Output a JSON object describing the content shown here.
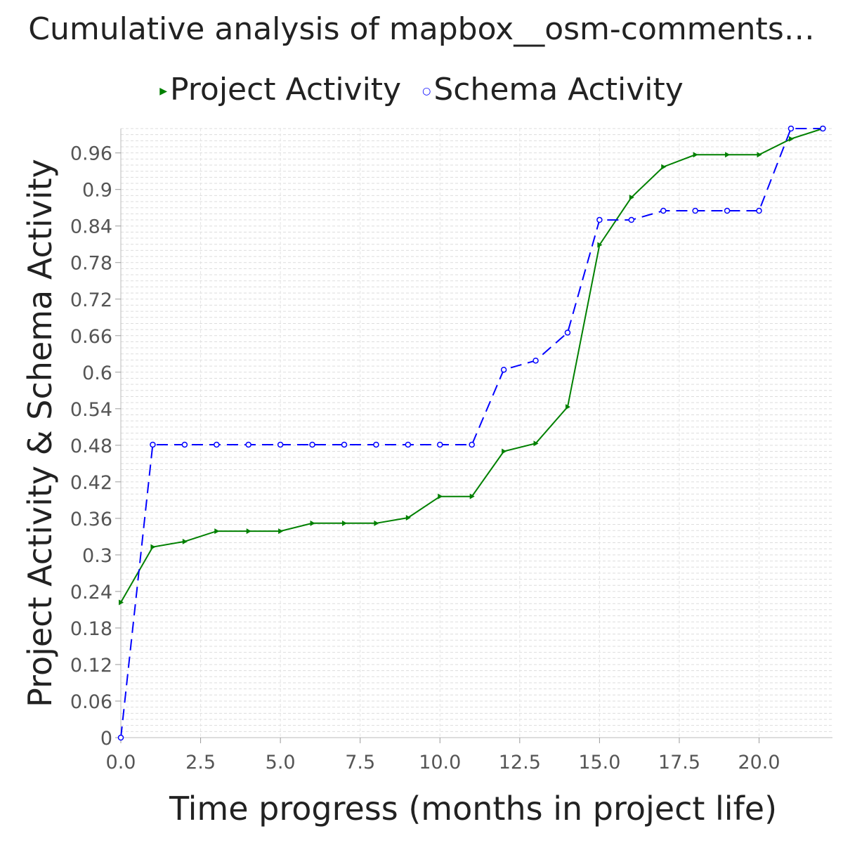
{
  "chart_data": {
    "type": "line",
    "title": "Cumulative analysis of mapbox__osm-comments…",
    "xlabel": "Time progress (months in project life)",
    "ylabel": "Project Activity & Schema Activity",
    "xlim": [
      0,
      22.3
    ],
    "ylim": [
      0,
      1.0
    ],
    "xticks": [
      "0.0",
      "2.5",
      "5.0",
      "7.5",
      "10.0",
      "12.5",
      "15.0",
      "17.5",
      "20.0"
    ],
    "yticks": [
      "0",
      "0.06",
      "0.12",
      "0.18",
      "0.24",
      "0.3",
      "0.36",
      "0.42",
      "0.48",
      "0.54",
      "0.6",
      "0.66",
      "0.72",
      "0.78",
      "0.84",
      "0.9",
      "0.96"
    ],
    "grid": true,
    "legend_position": "top",
    "series": [
      {
        "name": "Project Activity",
        "color": "#008000",
        "style": "solid",
        "marker": "triangle-right",
        "x": [
          0,
          1,
          2,
          3,
          4,
          5,
          6,
          7,
          8,
          9,
          10,
          11,
          12,
          13,
          14,
          15,
          16,
          17,
          18,
          19,
          20,
          21,
          22
        ],
        "y": [
          0.222,
          0.313,
          0.322,
          0.339,
          0.339,
          0.339,
          0.352,
          0.352,
          0.352,
          0.361,
          0.396,
          0.396,
          0.47,
          0.483,
          0.543,
          0.809,
          0.887,
          0.937,
          0.957,
          0.957,
          0.957,
          0.983,
          1.0
        ]
      },
      {
        "name": "Schema Activity",
        "color": "#0000ff",
        "style": "dashed",
        "marker": "circle",
        "x": [
          0,
          1,
          2,
          3,
          4,
          5,
          6,
          7,
          8,
          9,
          10,
          11,
          12,
          13,
          14,
          15,
          16,
          17,
          18,
          19,
          20,
          21,
          22
        ],
        "y": [
          0.0,
          0.481,
          0.481,
          0.481,
          0.481,
          0.481,
          0.481,
          0.481,
          0.481,
          0.481,
          0.481,
          0.481,
          0.604,
          0.619,
          0.665,
          0.85,
          0.85,
          0.865,
          0.865,
          0.865,
          0.865,
          1.0,
          1.0
        ]
      }
    ]
  }
}
